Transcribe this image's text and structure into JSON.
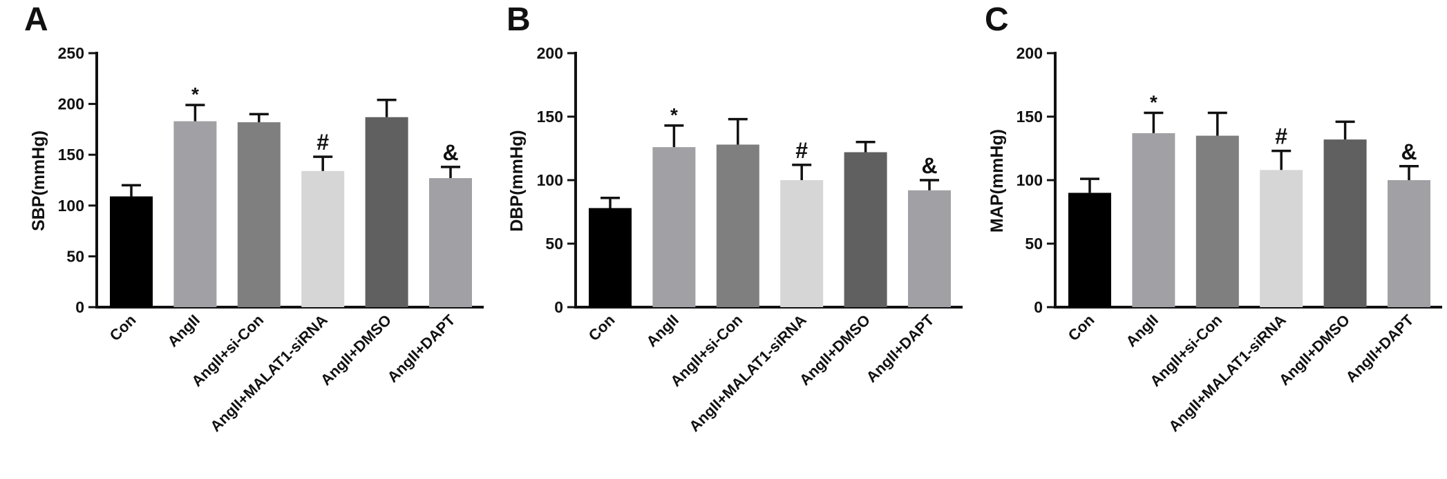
{
  "colors": {
    "bars": [
      "#000000",
      "#a1a1a5",
      "#7f7f7f",
      "#d6d6d6",
      "#606060",
      "#a1a1a5"
    ],
    "axis": "#111111"
  },
  "chart_data": [
    {
      "type": "bar",
      "panel_letter": "A",
      "ylabel": "SBP(mmHg)",
      "ylim": [
        0,
        250
      ],
      "yticks": [
        0,
        50,
        100,
        150,
        200,
        250
      ],
      "categories": [
        "Con",
        "AngII",
        "AngII+si-Con",
        "AngII+MALAT1-siRNA",
        "AngII+DMSO",
        "AngII+DAPT"
      ],
      "values": [
        109,
        183,
        182,
        134,
        187,
        127
      ],
      "errors": [
        11,
        16,
        8,
        14,
        17,
        11
      ],
      "annotations": [
        "",
        "*",
        "",
        "#",
        "",
        "&"
      ]
    },
    {
      "type": "bar",
      "panel_letter": "B",
      "ylabel": "DBP(mmHg)",
      "ylim": [
        0,
        200
      ],
      "yticks": [
        0,
        50,
        100,
        150,
        200
      ],
      "categories": [
        "Con",
        "AngII",
        "AngII+si-Con",
        "AngII+MALAT1-siRNA",
        "AngII+DMSO",
        "AngII+DAPT"
      ],
      "values": [
        78,
        126,
        128,
        100,
        122,
        92
      ],
      "errors": [
        8,
        17,
        20,
        12,
        8,
        8
      ],
      "annotations": [
        "",
        "*",
        "",
        "#",
        "",
        "&"
      ]
    },
    {
      "type": "bar",
      "panel_letter": "C",
      "ylabel": "MAP(mmHg)",
      "ylim": [
        0,
        200
      ],
      "yticks": [
        0,
        50,
        100,
        150,
        200
      ],
      "categories": [
        "Con",
        "AngII",
        "AngII+si-Con",
        "AngII+MALAT1-siRNA",
        "AngII+DMSO",
        "AngII+DAPT"
      ],
      "values": [
        90,
        137,
        135,
        108,
        132,
        100
      ],
      "errors": [
        11,
        16,
        18,
        15,
        14,
        11
      ],
      "annotations": [
        "",
        "*",
        "",
        "#",
        "",
        "&"
      ]
    }
  ]
}
